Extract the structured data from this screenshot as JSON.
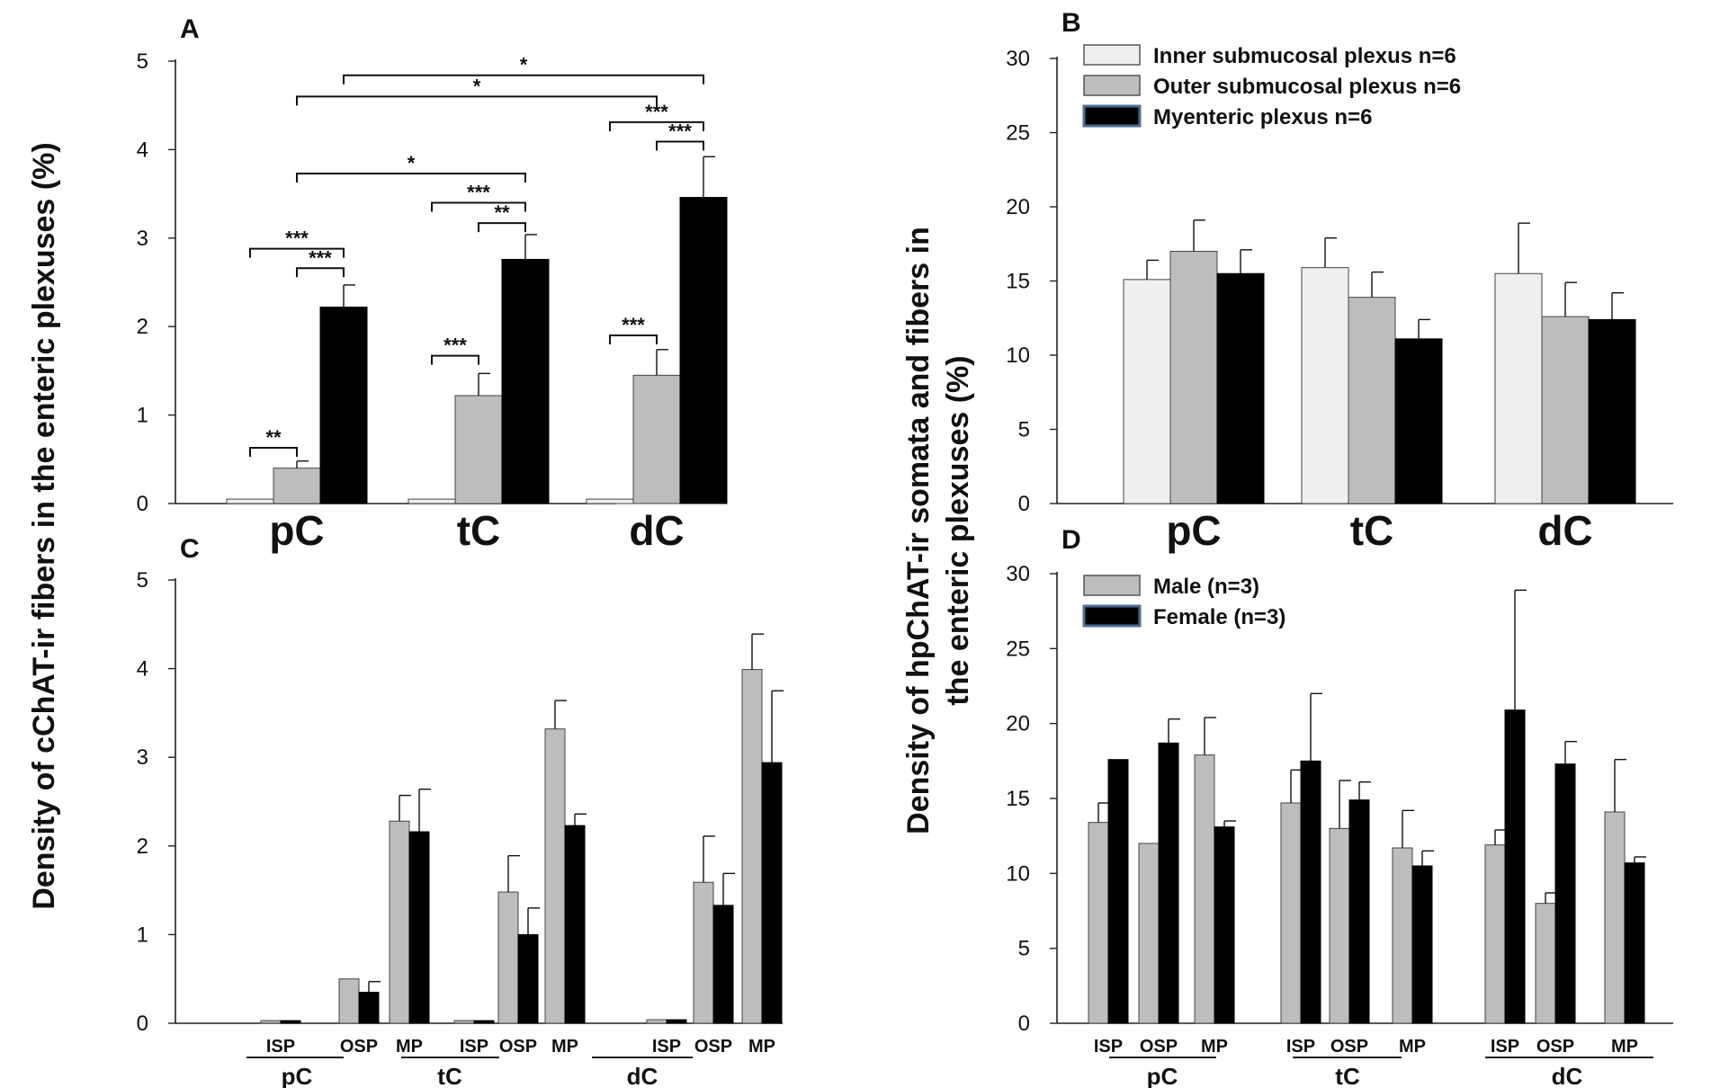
{
  "figure": {
    "ylabel_left": "Density of cChAT-ir fibers in the enteric plexuses (%)",
    "ylabel_right_line1": "Density of hpChAT-ir somata and fibers in",
    "ylabel_right_line2": "the enteric plexuses (%)"
  },
  "colors": {
    "isp": "#efefef",
    "osp": "#bdbdbd",
    "mp": "#000000",
    "male": "#bdbdbd",
    "female": "#000000",
    "legend_dark_border": "#4a6e96"
  },
  "chart_data": [
    {
      "panel": "A",
      "type": "bar",
      "ylim": [
        0,
        5
      ],
      "yticks": [
        "0",
        "1",
        "2",
        "3",
        "4",
        "5"
      ],
      "categories": [
        "pC",
        "tC",
        "dC"
      ],
      "series": [
        {
          "name": "ISP",
          "values": [
            0.05,
            0.05,
            0.05
          ],
          "errors": [
            0,
            0,
            0
          ]
        },
        {
          "name": "OSP",
          "values": [
            0.4,
            1.22,
            1.45
          ],
          "errors": [
            0.08,
            0.25,
            0.29
          ]
        },
        {
          "name": "MP",
          "values": [
            2.22,
            2.76,
            3.46
          ],
          "errors": [
            0.25,
            0.28,
            0.46
          ]
        }
      ],
      "annotations": [
        {
          "label": "**",
          "from": [
            0,
            0
          ],
          "to": [
            0,
            1
          ],
          "y": 0.63
        },
        {
          "label": "***",
          "from": [
            0,
            1
          ],
          "to": [
            0,
            2
          ],
          "y": 2.66
        },
        {
          "label": "***",
          "from": [
            0,
            0
          ],
          "to": [
            0,
            2
          ],
          "y": 2.88
        },
        {
          "label": "***",
          "from": [
            1,
            0
          ],
          "to": [
            1,
            1
          ],
          "y": 1.67
        },
        {
          "label": "**",
          "from": [
            1,
            1
          ],
          "to": [
            1,
            2
          ],
          "y": 3.17
        },
        {
          "label": "***",
          "from": [
            1,
            0
          ],
          "to": [
            1,
            2
          ],
          "y": 3.4
        },
        {
          "label": "***",
          "from": [
            2,
            0
          ],
          "to": [
            2,
            1
          ],
          "y": 1.9
        },
        {
          "label": "***",
          "from": [
            2,
            1
          ],
          "to": [
            2,
            2
          ],
          "y": 4.09
        },
        {
          "label": "***",
          "from": [
            2,
            0
          ],
          "to": [
            2,
            2
          ],
          "y": 4.31
        },
        {
          "label": "*",
          "from": [
            0,
            1
          ],
          "to": [
            1,
            2
          ],
          "y": 3.73
        },
        {
          "label": "*",
          "from": [
            0,
            1
          ],
          "to": [
            2,
            1
          ],
          "y": 4.6
        },
        {
          "label": "*",
          "from": [
            0,
            2
          ],
          "to": [
            2,
            2
          ],
          "y": 4.84
        }
      ]
    },
    {
      "panel": "B",
      "type": "bar",
      "ylim": [
        0,
        30
      ],
      "yticks": [
        "0",
        "5",
        "10",
        "15",
        "20",
        "25",
        "30"
      ],
      "categories": [
        "pC",
        "tC",
        "dC"
      ],
      "series": [
        {
          "name": "Inner submucosal plexus n=6",
          "values": [
            15.1,
            15.9,
            15.5
          ],
          "errors": [
            1.3,
            2.0,
            3.4
          ]
        },
        {
          "name": "Outer submucosal plexus n=6",
          "values": [
            17.0,
            13.9,
            12.6
          ],
          "errors": [
            2.1,
            1.7,
            2.3
          ]
        },
        {
          "name": "Myenteric plexus n=6",
          "values": [
            15.5,
            11.1,
            12.4
          ],
          "errors": [
            1.6,
            1.3,
            1.8
          ]
        }
      ],
      "legend": [
        "Inner submucosal plexus n=6",
        "Outer submucosal plexus n=6",
        "Myenteric plexus n=6"
      ]
    },
    {
      "panel": "C",
      "type": "bar",
      "ylim": [
        0,
        5
      ],
      "yticks": [
        "0",
        "1",
        "2",
        "3",
        "4",
        "5"
      ],
      "categories": [
        "ISP",
        "OSP",
        "MP",
        "ISP",
        "OSP",
        "MP",
        "ISP",
        "OSP",
        "MP"
      ],
      "groups": [
        "pC",
        "tC",
        "dC"
      ],
      "series": [
        {
          "name": "Male",
          "values": [
            0.03,
            0.5,
            2.28,
            0.03,
            1.48,
            3.32,
            0.04,
            1.59,
            3.99
          ],
          "errors": [
            0,
            0,
            0.29,
            0,
            0.41,
            0.32,
            0,
            0.52,
            0.4
          ]
        },
        {
          "name": "Female",
          "values": [
            0.03,
            0.35,
            2.16,
            0.03,
            1.0,
            2.23,
            0.04,
            1.33,
            2.94
          ],
          "errors": [
            0,
            0.12,
            0.48,
            0,
            0.3,
            0.13,
            0,
            0.36,
            0.81
          ]
        }
      ]
    },
    {
      "panel": "D",
      "type": "bar",
      "ylim": [
        0,
        30
      ],
      "yticks": [
        "0",
        "5",
        "10",
        "15",
        "20",
        "25",
        "30"
      ],
      "categories": [
        "ISP",
        "OSP",
        "MP",
        "ISP",
        "OSP",
        "MP",
        "ISP",
        "OSP",
        "MP"
      ],
      "groups": [
        "pC",
        "tC",
        "dC"
      ],
      "series": [
        {
          "name": "Male (n=3)",
          "values": [
            13.4,
            12.0,
            17.9,
            14.7,
            13.0,
            11.7,
            11.9,
            8.0,
            14.1
          ],
          "errors": [
            1.3,
            0,
            2.5,
            2.2,
            3.2,
            2.5,
            1.0,
            0.7,
            3.5
          ]
        },
        {
          "name": "Female (n=3)",
          "values": [
            17.6,
            18.7,
            13.1,
            17.5,
            14.9,
            10.5,
            20.9,
            17.3,
            10.7
          ],
          "errors": [
            0,
            1.6,
            0.4,
            4.5,
            1.2,
            1.0,
            8.0,
            1.5,
            0.4
          ]
        }
      ],
      "legend": [
        "Male (n=3)",
        "Female (n=3)"
      ]
    }
  ]
}
